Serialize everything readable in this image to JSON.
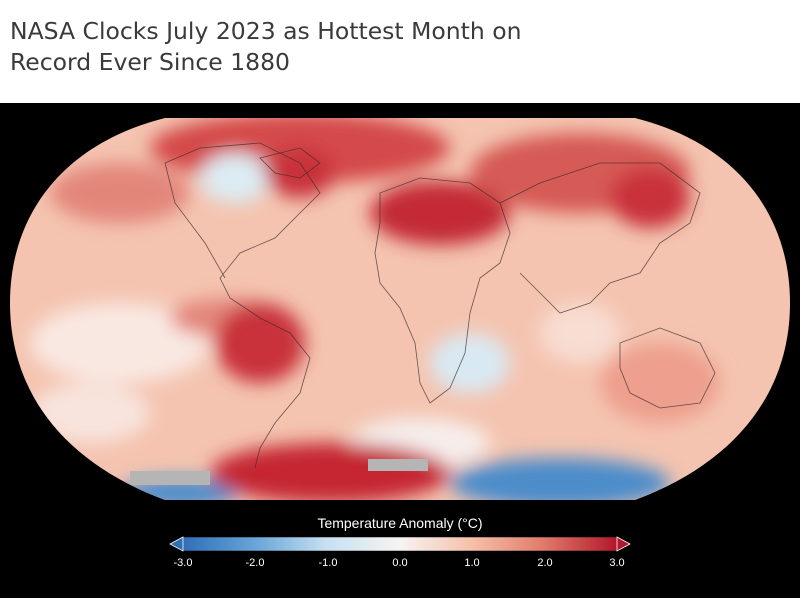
{
  "headline": {
    "line1": "NASA Clocks July 2023 as Hottest Month on",
    "line2": "Record Ever Since 1880"
  },
  "map": {
    "background": "#000000",
    "colorbar": {
      "title": "Temperature Anomaly (°C)",
      "min": -3.0,
      "max": 3.0,
      "ticks": [
        "-3.0",
        "-2.0",
        "-1.0",
        "0.0",
        "1.0",
        "2.0",
        "3.0"
      ],
      "colors": [
        "#2e6fb8",
        "#6aa6d8",
        "#c7e0f1",
        "#f7f4f2",
        "#f5bfa8",
        "#e07a6a",
        "#b2182b"
      ],
      "low_arrow_color": "#2e6fb8",
      "high_arrow_color": "#b2182b"
    }
  }
}
